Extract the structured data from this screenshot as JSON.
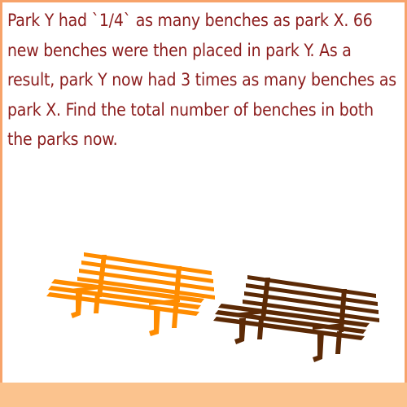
{
  "problem": {
    "text": "Park Y had `1/4` as many benches as park X. 66 new benches were then placed in park Y. As a result, park Y now had 3 times as many benches as park X. Find the total number of benches in both the parks now."
  },
  "illustration": {
    "benches": [
      {
        "icon": "bench-icon",
        "color": "#ff8c00"
      },
      {
        "icon": "bench-icon",
        "color": "#5c2a06"
      }
    ]
  },
  "theme": {
    "text_color": "#8b1c1c",
    "border_color": "#f7a36a",
    "band_color": "#fbc38e"
  }
}
